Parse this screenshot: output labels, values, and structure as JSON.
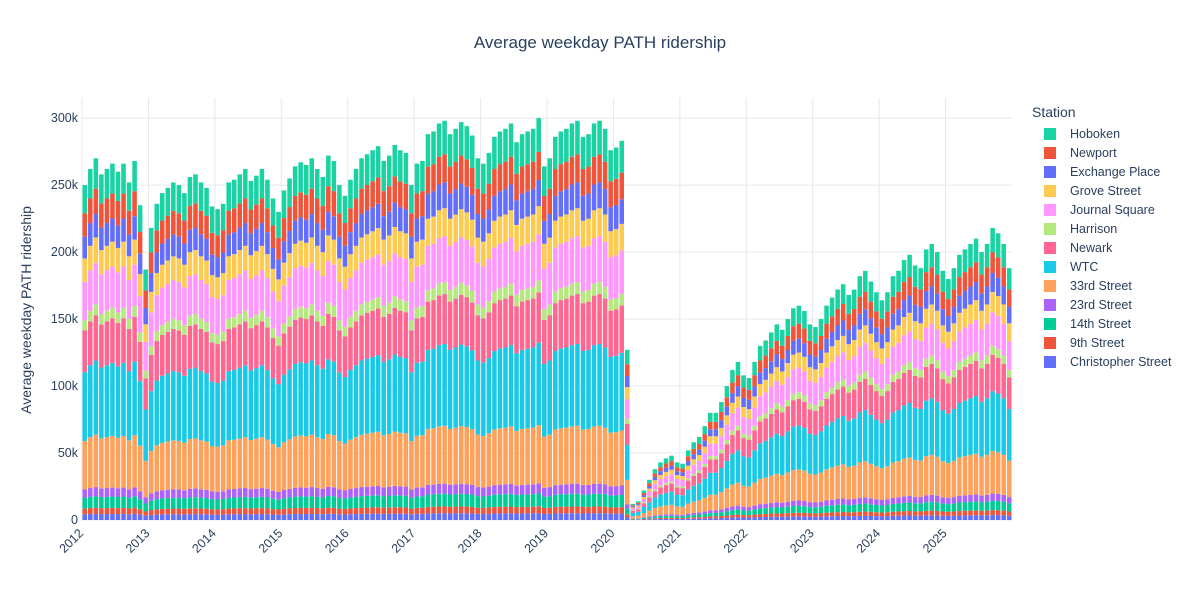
{
  "chart_data": {
    "type": "bar",
    "barmode": "stack",
    "title": "Average weekday PATH ridership",
    "xlabel": "",
    "ylabel": "Average weekday PATH ridership",
    "ylim": [
      0,
      315000
    ],
    "yticks": [
      0,
      50000,
      100000,
      150000,
      200000,
      250000,
      300000
    ],
    "ytick_labels": [
      "0",
      "50k",
      "100k",
      "150k",
      "200k",
      "250k",
      "300k"
    ],
    "xrange": [
      "2012-01",
      "2025-12"
    ],
    "xtick_labels": [
      "2012",
      "2013",
      "2014",
      "2015",
      "2016",
      "2017",
      "2018",
      "2019",
      "2020",
      "2021",
      "2022",
      "2023",
      "2024",
      "2025"
    ],
    "legend_title": "Station",
    "legend_position": "right",
    "stack_order": [
      "Christopher Street",
      "9th Street",
      "14th Street",
      "23rd Street",
      "33rd Street",
      "WTC",
      "Newark",
      "Harrison",
      "Journal Square",
      "Grove Street",
      "Exchange Place",
      "Newport",
      "Hoboken"
    ],
    "station_shares": {
      "Christopher Street": 0.017,
      "9th Street": 0.017,
      "14th Street": 0.032,
      "23rd Street": 0.025,
      "33rd Street": 0.145,
      "WTC": 0.205,
      "Newark": 0.125,
      "Harrison": 0.03,
      "Journal Square": 0.115,
      "Grove Street": 0.07,
      "Exchange Place": 0.065,
      "Newport": 0.07,
      "Hoboken": 0.084
    },
    "month_totals": [
      [
        2012,
        [
          250000,
          262000,
          270000,
          258000,
          262000,
          266000,
          260000,
          266000,
          252000,
          268000,
          235000,
          187000
        ]
      ],
      [
        2013,
        [
          218000,
          236000,
          244000,
          248000,
          252000,
          250000,
          244000,
          256000,
          258000,
          252000,
          248000,
          234000
        ]
      ],
      [
        2014,
        [
          232000,
          236000,
          252000,
          254000,
          258000,
          262000,
          253000,
          257000,
          262000,
          254000,
          240000,
          230000
        ]
      ],
      [
        2015,
        [
          246000,
          255000,
          264000,
          267000,
          265000,
          270000,
          262000,
          256000,
          272000,
          268000,
          250000,
          242000
        ]
      ],
      [
        2016,
        [
          254000,
          262000,
          270000,
          273000,
          276000,
          279000,
          268000,
          272000,
          280000,
          276000,
          274000,
          250000
        ]
      ],
      [
        2017,
        [
          266000,
          268000,
          288000,
          290000,
          296000,
          298000,
          288000,
          292000,
          297000,
          294000,
          287000,
          270000
        ]
      ],
      [
        2018,
        [
          266000,
          274000,
          286000,
          290000,
          292000,
          296000,
          282000,
          288000,
          290000,
          292000,
          300000,
          264000
        ]
      ],
      [
        2019,
        [
          270000,
          286000,
          290000,
          292000,
          296000,
          298000,
          286000,
          288000,
          296000,
          298000,
          292000,
          276000
        ]
      ],
      [
        2020,
        [
          278000,
          283000,
          127000,
          12000,
          14000,
          22000,
          30000,
          38000,
          43000,
          46000,
          48000,
          43000
        ]
      ],
      [
        2021,
        [
          42000,
          52000,
          58000,
          62000,
          70000,
          80000,
          80000,
          88000,
          100000,
          112000,
          118000,
          108000
        ]
      ],
      [
        2022,
        [
          106000,
          118000,
          130000,
          134000,
          140000,
          146000,
          142000,
          150000,
          158000,
          160000,
          156000,
          146000
        ]
      ],
      [
        2023,
        [
          144000,
          150000,
          160000,
          166000,
          172000,
          176000,
          168000,
          172000,
          182000,
          186000,
          178000,
          170000
        ]
      ],
      [
        2024,
        [
          164000,
          170000,
          182000,
          186000,
          194000,
          198000,
          190000,
          188000,
          202000,
          206000,
          200000,
          186000
        ]
      ],
      [
        2025,
        [
          180000,
          188000,
          198000,
          202000,
          206000,
          210000,
          200000,
          206000,
          218000,
          214000,
          206000,
          188000
        ]
      ]
    ],
    "series": [
      {
        "name": "Hoboken",
        "color": "#19d3a2"
      },
      {
        "name": "Newport",
        "color": "#ef553b"
      },
      {
        "name": "Exchange Place",
        "color": "#636efa"
      },
      {
        "name": "Grove Street",
        "color": "#fecb52"
      },
      {
        "name": "Journal Square",
        "color": "#ff97ff"
      },
      {
        "name": "Harrison",
        "color": "#b6e880"
      },
      {
        "name": "Newark",
        "color": "#ff6692"
      },
      {
        "name": "WTC",
        "color": "#19c9e6"
      },
      {
        "name": "33rd Street",
        "color": "#ffa15a"
      },
      {
        "name": "23rd Street",
        "color": "#ab63fa"
      },
      {
        "name": "14th Street",
        "color": "#00cc96"
      },
      {
        "name": "9th Street",
        "color": "#ef553b"
      },
      {
        "name": "Christopher Street",
        "color": "#636efa"
      }
    ]
  }
}
